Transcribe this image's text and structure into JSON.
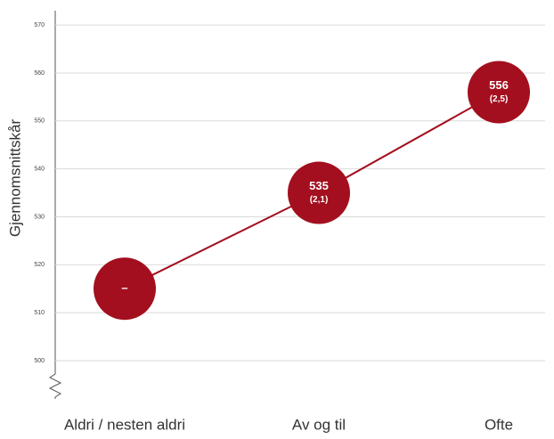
{
  "chart_data": {
    "type": "line",
    "y_label": "Gjennomsnittskår",
    "categories": [
      "Aldri / nesten aldri",
      "Av og til",
      "Ofte"
    ],
    "values": [
      515,
      535,
      556
    ],
    "value_labels": [
      "–",
      "535",
      "556"
    ],
    "errors": [
      null,
      2.1,
      2.5
    ],
    "error_labels": [
      null,
      "(2,1)",
      "(2,5)"
    ],
    "color": "#a30f1e",
    "ylim": [
      492,
      573
    ],
    "yticks": [
      500,
      510,
      520,
      530,
      540,
      550,
      560,
      570
    ],
    "grid": true
  }
}
